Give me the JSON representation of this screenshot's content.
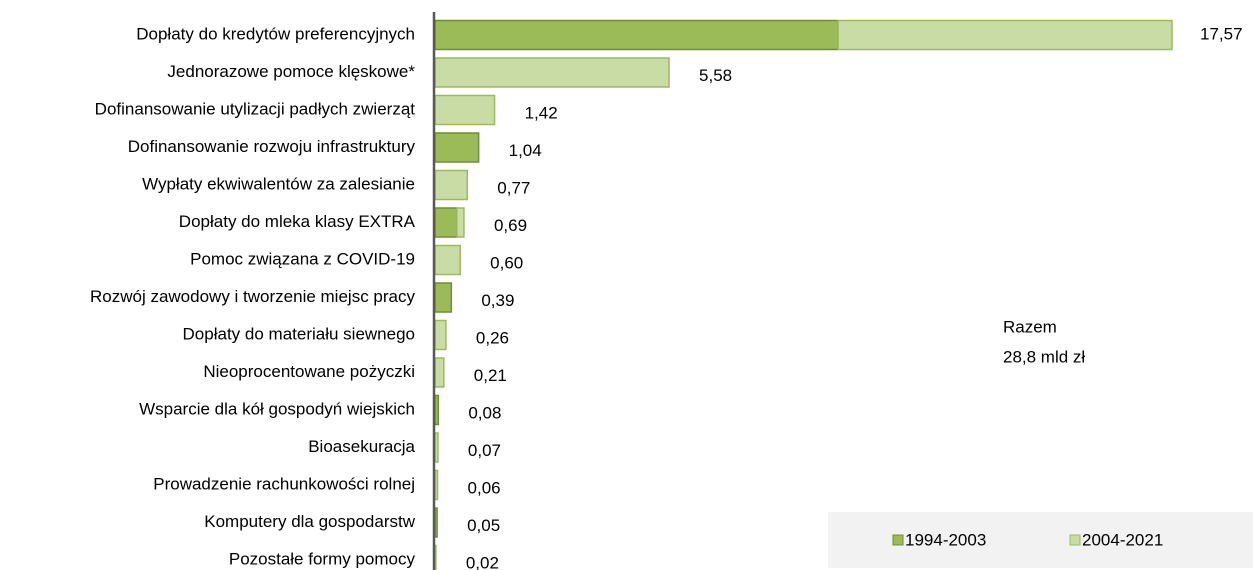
{
  "chart_data": {
    "type": "stacked_barh",
    "categories": [
      "Dopłaty do kredytów preferencyjnych",
      "Jednorazowe pomoce klęskowe*",
      "Dofinansowanie utylizacji padłych zwierząt",
      "Dofinansowanie rozwoju infrastruktury",
      "Wypłaty ekwiwalentów za zalesianie",
      "Dopłaty do mleka klasy EXTRA",
      "Pomoc związana z COVID-19",
      "Rozwój zawodowy i tworzenie miejsc pracy",
      "Dopłaty do materiału siewnego",
      "Nieoprocentowane pożyczki",
      "Wsparcie dla kół gospodyń wiejskich",
      "Bioasekuracja",
      "Prowadzenie rachunkowości rolnej",
      "Komputery dla gospodarstw",
      "Pozostałe formy pomocy"
    ],
    "series": [
      {
        "name": "1994-2003",
        "color": "#9bbb59",
        "stroke": "#6f8f32",
        "values": [
          9.61,
          0,
          0,
          1.04,
          0,
          0.52,
          0,
          0.39,
          0,
          0,
          0.08,
          0,
          0,
          0.05,
          0
        ]
      },
      {
        "name": "2004-2021",
        "color": "#c9dca5",
        "stroke": "#9bbb59",
        "values": [
          7.96,
          5.58,
          1.42,
          0,
          0.77,
          0.17,
          0.6,
          0,
          0.26,
          0.21,
          0,
          0.07,
          0.06,
          0,
          0.02
        ]
      }
    ],
    "totals": [
      17.57,
      5.58,
      1.42,
      1.04,
      0.77,
      0.69,
      0.6,
      0.39,
      0.26,
      0.21,
      0.08,
      0.07,
      0.06,
      0.05,
      0.02
    ],
    "total_labels": [
      "17,57",
      "5,58",
      "1,42",
      "1,04",
      "0,77",
      "0,69",
      "0,60",
      "0,39",
      "0,26",
      "0,21",
      "0,08",
      "0,07",
      "0,06",
      "0,05",
      "0,02"
    ],
    "xlim": [
      0,
      18
    ],
    "annotation": [
      "Razem",
      "28,8 mld zł"
    ],
    "legend": "bottom-right"
  }
}
